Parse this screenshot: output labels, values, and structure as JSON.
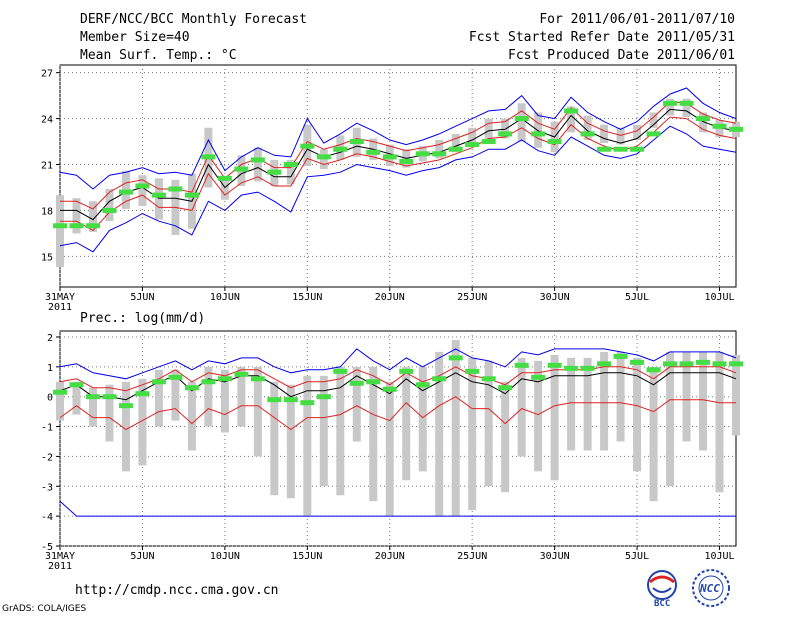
{
  "header": {
    "title": "DERF/NCC/BCC Monthly Forecast",
    "member_size": "Member Size=40",
    "variable": "Mean Surf. Temp.: °C",
    "period": "For 2011/06/01-2011/07/10",
    "fcst_start": "Fcst Started Refer Date 2011/05/31",
    "fcst_produced": "Fcst Produced Date 2011/06/01"
  },
  "footer": {
    "url": "http://cmdp.ncc.cma.gov.cn",
    "grads": "GrADS: COLA/IGES",
    "logo1_text": "BCC",
    "logo2_text": "NCC"
  },
  "colors": {
    "grid": "#777777",
    "bar": "#c8c8c8",
    "green": "#44dd44",
    "blue": "#0000ee",
    "red": "#dd2222",
    "black": "#000000"
  },
  "x_axis": {
    "tick_labels": [
      "31MAY",
      "5JUN",
      "10JUN",
      "15JUN",
      "20JUN",
      "25JUN",
      "30JUN",
      "5JUL",
      "10JUL"
    ],
    "year_label": "2011",
    "tick_days": [
      0,
      5,
      10,
      15,
      20,
      25,
      30,
      35,
      40
    ],
    "range": [
      0,
      41
    ]
  },
  "chart_data": [
    {
      "type": "line",
      "title": "Mean Surf. Temp.: °C",
      "ylim": [
        13,
        27.5
      ],
      "yticks": [
        15,
        18,
        21,
        24,
        27
      ],
      "x": [
        0,
        1,
        2,
        3,
        4,
        5,
        6,
        7,
        8,
        9,
        10,
        11,
        12,
        13,
        14,
        15,
        16,
        17,
        18,
        19,
        20,
        21,
        22,
        23,
        24,
        25,
        26,
        27,
        28,
        29,
        30,
        31,
        32,
        33,
        34,
        35,
        36,
        37,
        38,
        39,
        40,
        41
      ],
      "series": [
        {
          "name": "mean",
          "values": [
            18.0,
            18.0,
            17.4,
            18.6,
            19.2,
            19.5,
            18.8,
            18.8,
            18.6,
            21.0,
            19.5,
            20.4,
            20.8,
            20.2,
            20.2,
            22.0,
            21.5,
            21.8,
            22.2,
            22.0,
            21.7,
            21.4,
            21.6,
            21.8,
            22.2,
            22.6,
            23.2,
            23.3,
            24.0,
            23.2,
            22.8,
            24.2,
            23.2,
            22.7,
            22.4,
            22.7,
            23.6,
            24.6,
            24.5,
            23.8,
            23.4,
            23.2
          ]
        },
        {
          "name": "upper_red",
          "values": [
            18.6,
            18.6,
            18.1,
            19.2,
            19.8,
            20.0,
            19.4,
            19.4,
            19.2,
            21.6,
            20.1,
            21.0,
            21.4,
            20.8,
            20.8,
            22.5,
            22.0,
            22.3,
            22.7,
            22.5,
            22.2,
            21.9,
            22.1,
            22.3,
            22.7,
            23.1,
            23.7,
            23.8,
            24.5,
            23.7,
            23.3,
            24.7,
            23.7,
            23.2,
            22.9,
            23.2,
            24.1,
            25.1,
            25.0,
            24.3,
            23.9,
            23.7
          ]
        },
        {
          "name": "lower_red",
          "values": [
            17.3,
            17.3,
            16.7,
            17.9,
            18.6,
            19.0,
            18.2,
            18.2,
            18.0,
            20.4,
            19.0,
            19.8,
            20.2,
            19.6,
            19.6,
            21.4,
            21.0,
            21.3,
            21.7,
            21.5,
            21.2,
            20.9,
            21.1,
            21.3,
            21.7,
            22.1,
            22.7,
            22.8,
            23.4,
            22.7,
            22.3,
            23.6,
            22.7,
            22.2,
            21.9,
            22.2,
            23.1,
            24.1,
            24.0,
            23.3,
            22.9,
            22.7
          ]
        },
        {
          "name": "upper_blue",
          "values": [
            20.5,
            20.3,
            19.4,
            20.3,
            20.5,
            20.8,
            20.4,
            20.5,
            20.3,
            22.6,
            20.6,
            21.5,
            22.1,
            21.6,
            21.5,
            24.0,
            22.4,
            23.0,
            23.7,
            23.2,
            22.6,
            22.3,
            22.6,
            23.0,
            23.5,
            24.0,
            24.5,
            24.6,
            25.5,
            24.2,
            24.0,
            25.4,
            24.4,
            23.8,
            23.3,
            23.8,
            24.8,
            25.6,
            26.0,
            25.0,
            24.4,
            24.0
          ]
        },
        {
          "name": "lower_blue",
          "values": [
            15.7,
            15.9,
            15.3,
            16.7,
            17.2,
            17.8,
            17.3,
            17.0,
            16.4,
            18.6,
            18.0,
            19.0,
            19.2,
            18.6,
            17.9,
            20.2,
            20.3,
            20.5,
            21.0,
            20.8,
            20.6,
            20.3,
            20.6,
            20.8,
            21.3,
            21.5,
            22.0,
            22.0,
            22.6,
            21.9,
            21.6,
            22.8,
            22.2,
            21.6,
            21.4,
            21.7,
            22.6,
            23.5,
            23.0,
            22.2,
            22.0,
            21.8
          ]
        }
      ],
      "members_bars": {
        "low": [
          14.3,
          16.5,
          16.6,
          17.3,
          18.1,
          18.3,
          17.4,
          16.4,
          16.8,
          19.5,
          18.7,
          19.6,
          19.9,
          19.6,
          19.7,
          20.9,
          20.7,
          21.3,
          21.5,
          21.3,
          20.9,
          20.8,
          21.2,
          21.4,
          21.8,
          22.3,
          22.6,
          22.7,
          22.5,
          22.1,
          21.8,
          23.1,
          22.6,
          22.4,
          22.3,
          22.6,
          23.4,
          24.2,
          24.1,
          23.1,
          22.8,
          22.8
        ],
        "high": [
          19.0,
          18.8,
          18.6,
          19.4,
          20.6,
          20.3,
          20.1,
          20.0,
          20.4,
          23.4,
          20.2,
          21.6,
          22.1,
          21.3,
          21.3,
          23.6,
          22.0,
          22.9,
          23.4,
          22.7,
          22.3,
          22.0,
          22.2,
          22.6,
          23.0,
          23.4,
          24.0,
          24.0,
          25.0,
          24.4,
          23.8,
          24.8,
          24.2,
          23.6,
          23.4,
          23.6,
          24.4,
          25.3,
          25.3,
          24.4,
          23.9,
          23.8
        ],
        "green": [
          17.0,
          17.0,
          17.0,
          18.0,
          19.2,
          19.6,
          19.0,
          19.4,
          19.0,
          21.5,
          20.1,
          20.7,
          21.3,
          20.5,
          21.0,
          22.2,
          21.5,
          22.0,
          22.5,
          21.8,
          21.5,
          21.2,
          21.7,
          21.7,
          22.0,
          22.3,
          22.5,
          23.0,
          24.0,
          23.0,
          22.5,
          24.5,
          23.0,
          22.0,
          22.0,
          22.0,
          23.0,
          25.0,
          25.0,
          24.0,
          23.5,
          23.3
        ]
      }
    },
    {
      "type": "line",
      "title": "Prec.: log(mm/d)",
      "ylim": [
        -5,
        2.2
      ],
      "yticks": [
        -5,
        -4,
        -3,
        -2,
        -1,
        0,
        1,
        2
      ],
      "x": [
        0,
        1,
        2,
        3,
        4,
        5,
        6,
        7,
        8,
        9,
        10,
        11,
        12,
        13,
        14,
        15,
        16,
        17,
        18,
        19,
        20,
        21,
        22,
        23,
        24,
        25,
        26,
        27,
        28,
        29,
        30,
        31,
        32,
        33,
        34,
        35,
        36,
        37,
        38,
        39,
        40,
        41
      ],
      "series": [
        {
          "name": "mean",
          "values": [
            0.2,
            0.4,
            0.0,
            0.0,
            -0.1,
            0.2,
            0.5,
            0.7,
            0.2,
            0.6,
            0.5,
            0.7,
            0.7,
            0.4,
            0.0,
            0.2,
            0.2,
            0.3,
            0.7,
            0.4,
            0.1,
            0.6,
            0.2,
            0.5,
            0.8,
            0.5,
            0.4,
            0.1,
            0.6,
            0.5,
            0.7,
            0.7,
            0.7,
            0.8,
            0.8,
            0.7,
            0.4,
            0.8,
            0.8,
            0.8,
            0.8,
            0.6
          ]
        },
        {
          "name": "upper_red",
          "values": [
            0.5,
            0.6,
            0.3,
            0.3,
            0.2,
            0.4,
            0.6,
            0.9,
            0.5,
            0.8,
            0.7,
            0.9,
            0.9,
            0.6,
            0.3,
            0.5,
            0.5,
            0.6,
            0.9,
            0.7,
            0.4,
            0.8,
            0.5,
            0.7,
            1.0,
            0.7,
            0.6,
            0.4,
            0.8,
            0.8,
            0.9,
            0.9,
            0.9,
            1.0,
            1.0,
            0.9,
            0.6,
            1.0,
            1.0,
            1.0,
            1.0,
            0.8
          ]
        },
        {
          "name": "lower_red",
          "values": [
            -0.7,
            -0.3,
            -0.7,
            -0.7,
            -1.1,
            -0.8,
            -0.5,
            -0.4,
            -0.9,
            -0.4,
            -0.6,
            -0.3,
            -0.3,
            -0.7,
            -1.1,
            -0.7,
            -0.7,
            -0.6,
            -0.3,
            -0.6,
            -0.8,
            -0.2,
            -0.7,
            -0.3,
            0.0,
            -0.4,
            -0.4,
            -0.9,
            -0.4,
            -0.6,
            -0.3,
            -0.2,
            -0.2,
            -0.2,
            -0.2,
            -0.3,
            -0.5,
            -0.1,
            -0.1,
            -0.1,
            -0.2,
            -0.2
          ]
        },
        {
          "name": "upper_blue",
          "values": [
            1.0,
            1.1,
            0.8,
            0.7,
            0.6,
            0.8,
            1.0,
            1.2,
            0.9,
            1.2,
            1.1,
            1.3,
            1.3,
            1.0,
            0.8,
            0.9,
            0.9,
            1.0,
            1.6,
            1.2,
            0.9,
            1.3,
            1.0,
            1.3,
            1.6,
            1.3,
            1.2,
            1.0,
            1.5,
            1.4,
            1.6,
            1.6,
            1.6,
            1.6,
            1.5,
            1.4,
            1.2,
            1.5,
            1.5,
            1.5,
            1.5,
            1.3
          ]
        },
        {
          "name": "lower_blue",
          "values": [
            -3.5,
            -4.0,
            -4.0,
            -4.0,
            -4.0,
            -4.0,
            -4.0,
            -4.0,
            -4.0,
            -4.0,
            -4.0,
            -4.0,
            -4.0,
            -4.0,
            -4.0,
            -4.0,
            -4.0,
            -4.0,
            -4.0,
            -4.0,
            -4.0,
            -4.0,
            -4.0,
            -4.0,
            -4.0,
            -4.0,
            -4.0,
            -4.0,
            -4.0,
            -4.0,
            -4.0,
            -4.0,
            -4.0,
            -4.0,
            -4.0,
            -4.0,
            -4.0,
            -4.0,
            -4.0,
            -4.0,
            -4.0,
            -4.0
          ]
        }
      ],
      "members_bars": {
        "low": [
          -0.8,
          -0.6,
          -1.0,
          -1.5,
          -2.5,
          -2.3,
          -1.0,
          -0.8,
          -1.8,
          -1.0,
          -1.2,
          -1.0,
          -2.0,
          -3.3,
          -3.4,
          -4.0,
          -3.0,
          -3.3,
          -1.5,
          -3.5,
          -4.0,
          -2.8,
          -2.5,
          -4.0,
          -4.0,
          -3.8,
          -3.0,
          -3.2,
          -2.0,
          -2.5,
          -2.8,
          -1.8,
          -1.8,
          -1.8,
          -1.5,
          -2.5,
          -3.5,
          -3.0,
          -1.5,
          -1.8,
          -3.2,
          -1.3
        ],
        "high": [
          0.5,
          0.5,
          0.3,
          0.4,
          0.5,
          0.6,
          0.9,
          0.9,
          0.5,
          1.0,
          0.9,
          1.0,
          1.0,
          0.5,
          0.4,
          0.7,
          0.7,
          1.0,
          1.0,
          1.0,
          0.5,
          1.0,
          1.0,
          1.5,
          1.9,
          1.3,
          1.2,
          0.5,
          1.3,
          1.2,
          1.4,
          1.3,
          1.3,
          1.5,
          1.5,
          1.3,
          1.0,
          1.5,
          1.5,
          1.5,
          1.5,
          1.4
        ],
        "green": [
          0.15,
          0.4,
          0.0,
          0.0,
          -0.3,
          0.1,
          0.5,
          0.65,
          0.3,
          0.5,
          0.6,
          0.75,
          0.6,
          -0.1,
          -0.1,
          -0.2,
          0.0,
          0.85,
          0.45,
          0.5,
          0.25,
          0.85,
          0.4,
          0.6,
          1.3,
          0.85,
          0.6,
          0.3,
          1.05,
          0.65,
          1.05,
          0.95,
          0.95,
          1.1,
          1.35,
          1.15,
          0.9,
          1.1,
          1.1,
          1.15,
          1.1,
          1.1
        ]
      }
    }
  ]
}
